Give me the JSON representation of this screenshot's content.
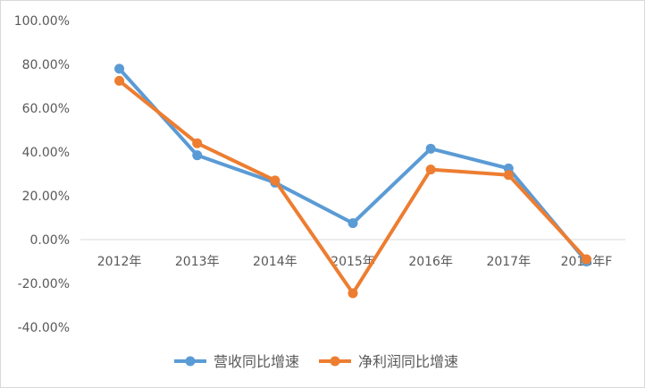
{
  "chart_data": {
    "type": "line",
    "title": "",
    "xlabel": "",
    "ylabel": "",
    "categories": [
      "2012年",
      "2013年",
      "2014年",
      "2015年",
      "2016年",
      "2017年",
      "2018年F"
    ],
    "series": [
      {
        "name": "营收同比增速",
        "color": "#5b9bd5",
        "values": [
          78,
          38.5,
          26,
          7.5,
          41.5,
          32.5,
          -10
        ]
      },
      {
        "name": "净利润同比增速",
        "color": "#ed7d31",
        "values": [
          72.5,
          44,
          27,
          -24.5,
          32,
          29.5,
          -9
        ]
      }
    ],
    "ylim": [
      -40,
      100
    ],
    "y_ticks": [
      "100.00%",
      "80.00%",
      "60.00%",
      "40.00%",
      "20.00%",
      "0.00%",
      "-20.00%",
      "-40.00%"
    ],
    "y_tick_values": [
      100,
      80,
      60,
      40,
      20,
      0,
      -20,
      -40
    ],
    "grid": false,
    "legend_position": "bottom"
  }
}
